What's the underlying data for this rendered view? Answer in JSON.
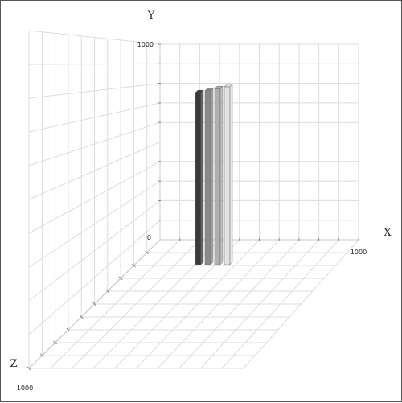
{
  "chart_data": {
    "type": "bar",
    "title": "",
    "axes": {
      "x_label": "X",
      "y_label": "Y",
      "z_label": "Z"
    },
    "xlim": [
      0,
      1000
    ],
    "ylim": [
      0,
      1000
    ],
    "zlim": [
      0,
      1000
    ],
    "tick_labels": {
      "x_max": "1000",
      "y_min": "0",
      "y_max": "1000",
      "z_max": "1000"
    },
    "grid": true,
    "series": [
      {
        "x": 180,
        "z": 0,
        "y": 880,
        "color": "#3a3a3a"
      },
      {
        "x": 240,
        "z": 0,
        "y": 890,
        "color": "#8a8a8a"
      },
      {
        "x": 300,
        "z": 0,
        "y": 900,
        "color": "#b0b0b0"
      },
      {
        "x": 360,
        "z": 0,
        "y": 910,
        "color": "#e3e3e3"
      }
    ]
  }
}
